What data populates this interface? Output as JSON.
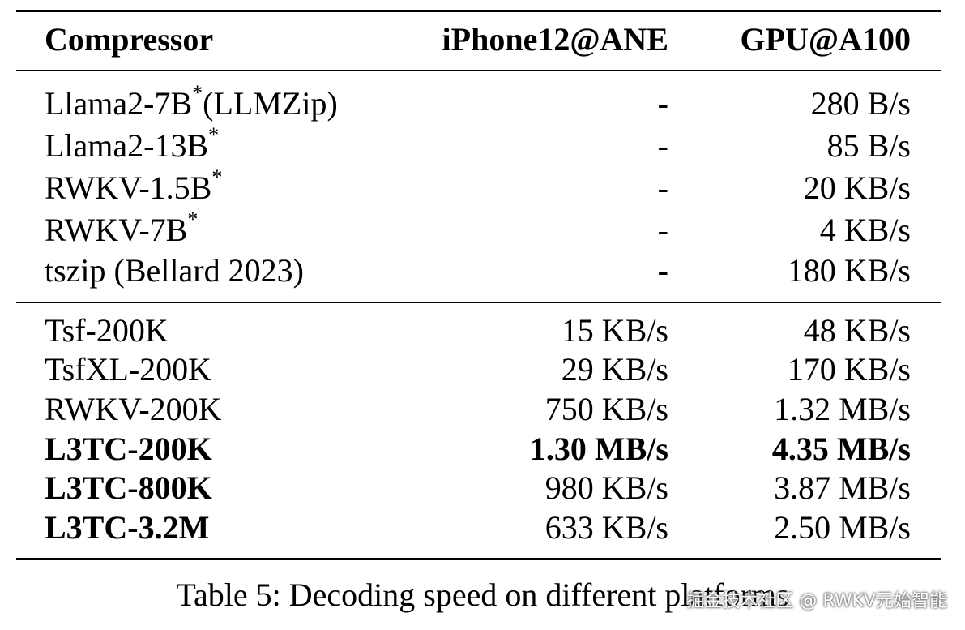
{
  "table": {
    "headers": [
      "Compressor",
      "iPhone12@ANE",
      "GPU@A100"
    ],
    "group1": [
      {
        "name": "Llama2-7B",
        "star": "*",
        "suffix": "(LLMZip)",
        "ane": "-",
        "gpu": "280 B/s"
      },
      {
        "name": "Llama2-13B",
        "star": "*",
        "suffix": "",
        "ane": "-",
        "gpu": "85 B/s"
      },
      {
        "name": "RWKV-1.5B",
        "star": "*",
        "suffix": "",
        "ane": "-",
        "gpu": "20 KB/s"
      },
      {
        "name": "RWKV-7B",
        "star": "*",
        "suffix": "",
        "ane": "-",
        "gpu": "4 KB/s"
      },
      {
        "name": "tszip (Bellard 2023)",
        "star": "",
        "suffix": "",
        "ane": "-",
        "gpu": "180 KB/s"
      }
    ],
    "group2": [
      {
        "name": "Tsf-200K",
        "ane": "15 KB/s",
        "gpu": "48 KB/s"
      },
      {
        "name": "TsfXL-200K",
        "ane": "29 KB/s",
        "gpu": "170 KB/s"
      },
      {
        "name": "RWKV-200K",
        "ane": "750 KB/s",
        "gpu": "1.32 MB/s"
      },
      {
        "name": "L3TC-200K",
        "ane": "1.30 MB/s",
        "gpu": "4.35 MB/s"
      },
      {
        "name": "L3TC-800K",
        "ane": "980 KB/s",
        "gpu": "3.87 MB/s"
      },
      {
        "name": "L3TC-3.2M",
        "ane": "633 KB/s",
        "gpu": "2.50 MB/s"
      }
    ]
  },
  "caption": "Table 5: Decoding speed on different platforms",
  "watermark": "掘金技术社区 @ RWKV元始智能"
}
